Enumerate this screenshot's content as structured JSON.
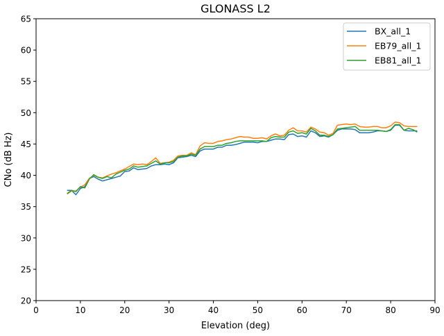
{
  "chart_data": {
    "type": "line",
    "title": "GLONASS L2",
    "xlabel": "Elevation (deg)",
    "ylabel": "CNo (dB Hz)",
    "xlim": [
      0,
      90
    ],
    "ylim": [
      20,
      65
    ],
    "xticks": [
      0,
      10,
      20,
      30,
      40,
      50,
      60,
      70,
      80,
      90
    ],
    "yticks": [
      20,
      25,
      30,
      35,
      40,
      45,
      50,
      55,
      60,
      65
    ],
    "grid": false,
    "legend_position": "top-right",
    "x_start": 7,
    "series": [
      {
        "name": "BX_all_1",
        "color": "#1f77b4",
        "values": [
          37.6,
          37.6,
          36.9,
          37.9,
          38.2,
          39.5,
          39.8,
          39.4,
          39.1,
          39.3,
          39.5,
          39.7,
          39.9,
          40.6,
          40.7,
          41.2,
          40.9,
          41.0,
          41.1,
          41.5,
          41.7,
          41.7,
          41.8,
          41.7,
          42.0,
          42.8,
          42.9,
          43.0,
          43.2,
          43.0,
          43.9,
          44.2,
          44.2,
          44.2,
          44.5,
          44.5,
          44.8,
          44.8,
          44.9,
          45.1,
          45.3,
          45.3,
          45.3,
          45.2,
          45.4,
          45.4,
          45.6,
          45.8,
          45.8,
          45.7,
          46.5,
          46.6,
          46.2,
          46.3,
          46.1,
          47.1,
          46.8,
          46.2,
          46.3,
          46.1,
          46.5,
          47.2,
          47.4,
          47.4,
          47.4,
          47.3,
          46.8,
          46.8,
          46.8,
          46.9,
          47.1,
          47.1,
          47.0,
          47.2,
          48.0,
          48.0,
          47.2,
          47.1,
          47.1,
          47.1
        ]
      },
      {
        "name": "EB79_all_1",
        "color": "#ff7f0e",
        "values": [
          37.0,
          37.5,
          37.5,
          38.1,
          38.5,
          39.5,
          40.0,
          39.7,
          39.6,
          39.9,
          40.2,
          40.4,
          40.7,
          41.0,
          41.4,
          41.8,
          41.7,
          41.8,
          41.7,
          42.2,
          42.8,
          41.9,
          42.0,
          42.1,
          42.4,
          43.1,
          43.2,
          43.2,
          43.6,
          43.3,
          44.7,
          45.2,
          45.1,
          45.1,
          45.4,
          45.5,
          45.7,
          45.8,
          46.0,
          46.2,
          46.1,
          46.1,
          45.9,
          45.9,
          46.0,
          45.8,
          46.3,
          46.6,
          46.3,
          46.4,
          47.2,
          47.6,
          47.1,
          47.1,
          46.9,
          47.7,
          47.4,
          46.9,
          46.8,
          46.4,
          46.7,
          48.0,
          48.1,
          48.2,
          48.1,
          48.2,
          47.8,
          47.7,
          47.7,
          47.8,
          47.8,
          47.6,
          47.6,
          47.9,
          48.5,
          48.4,
          47.9,
          47.8,
          47.8,
          47.8
        ]
      },
      {
        "name": "EB81_all_1",
        "color": "#2ca02c",
        "values": [
          37.1,
          37.6,
          37.4,
          38.2,
          38.0,
          39.4,
          40.1,
          39.7,
          39.5,
          39.8,
          39.6,
          40.2,
          40.5,
          40.8,
          41.0,
          41.5,
          41.3,
          41.4,
          41.5,
          41.9,
          42.3,
          41.8,
          42.0,
          42.0,
          42.2,
          42.9,
          43.1,
          43.1,
          43.4,
          43.2,
          44.2,
          44.6,
          44.6,
          44.6,
          44.8,
          44.8,
          45.1,
          45.2,
          45.4,
          45.5,
          45.5,
          45.5,
          45.5,
          45.5,
          45.5,
          45.4,
          46.0,
          46.2,
          46.1,
          46.1,
          46.9,
          47.1,
          46.7,
          46.8,
          46.6,
          47.5,
          47.1,
          46.4,
          46.4,
          46.2,
          46.5,
          47.4,
          47.5,
          47.6,
          47.7,
          47.8,
          47.2,
          47.2,
          47.2,
          47.2,
          47.2,
          47.1,
          47.0,
          47.3,
          48.1,
          48.1,
          47.2,
          47.5,
          47.3,
          46.9
        ]
      }
    ]
  }
}
